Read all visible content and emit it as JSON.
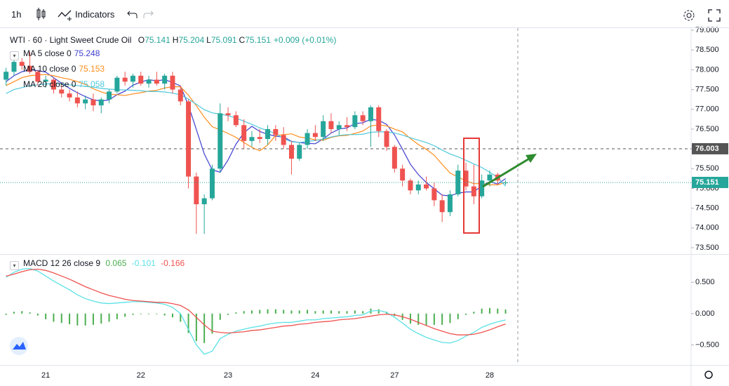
{
  "toolbar": {
    "interval": "1h",
    "indicators": "Indicators"
  },
  "chart_data": [
    {
      "type": "candlestick",
      "title": "WTI · 60 · Light Sweet Crude Oil",
      "ohlc_prefixes": [
        "O",
        "H",
        "L",
        "C"
      ],
      "change_label": "+0.009 (+0.01%)",
      "categories": [
        null,
        null,
        null,
        null,
        null,
        "21",
        null,
        null,
        null,
        null,
        null,
        null,
        null,
        null,
        null,
        null,
        null,
        "22",
        null,
        null,
        null,
        null,
        null,
        null,
        null,
        null,
        null,
        null,
        "23",
        null,
        null,
        null,
        null,
        null,
        null,
        null,
        null,
        null,
        null,
        "24",
        null,
        null,
        null,
        null,
        null,
        null,
        null,
        null,
        null,
        "27",
        null,
        null,
        null,
        null,
        null,
        null,
        null,
        null,
        null,
        null,
        null,
        "28",
        null,
        null
      ],
      "candles": [
        [
          77.75,
          78.05,
          77.6,
          77.95
        ],
        [
          77.95,
          78.25,
          77.85,
          78.2
        ],
        [
          78.2,
          78.3,
          78.0,
          78.1
        ],
        [
          78.1,
          78.45,
          77.9,
          77.95
        ],
        [
          77.95,
          78.0,
          77.6,
          77.7
        ],
        [
          77.7,
          77.85,
          77.55,
          77.75
        ],
        [
          77.75,
          77.8,
          77.4,
          77.5
        ],
        [
          77.5,
          77.65,
          77.3,
          77.4
        ],
        [
          77.4,
          77.5,
          77.2,
          77.3
        ],
        [
          77.3,
          77.45,
          77.05,
          77.15
        ],
        [
          77.15,
          77.35,
          77.0,
          77.25
        ],
        [
          77.25,
          77.4,
          76.95,
          77.1
        ],
        [
          77.1,
          77.3,
          76.9,
          77.25
        ],
        [
          77.25,
          77.5,
          77.15,
          77.45
        ],
        [
          77.45,
          77.85,
          77.4,
          77.8
        ],
        [
          77.8,
          77.95,
          77.6,
          77.7
        ],
        [
          77.7,
          77.9,
          77.55,
          77.85
        ],
        [
          77.85,
          77.95,
          77.6,
          77.65
        ],
        [
          77.65,
          77.85,
          77.55,
          77.75
        ],
        [
          77.75,
          77.95,
          77.6,
          77.65
        ],
        [
          77.65,
          77.9,
          77.5,
          77.85
        ],
        [
          77.85,
          77.95,
          77.4,
          77.5
        ],
        [
          77.5,
          77.6,
          77.1,
          77.2
        ],
        [
          77.2,
          77.25,
          75.0,
          75.3
        ],
        [
          75.3,
          75.4,
          73.85,
          74.6
        ],
        [
          74.6,
          74.85,
          73.85,
          74.75
        ],
        [
          74.75,
          75.6,
          74.7,
          75.5
        ],
        [
          75.5,
          77.15,
          75.4,
          76.9
        ],
        [
          76.9,
          77.05,
          76.7,
          76.85
        ],
        [
          76.85,
          76.95,
          76.55,
          76.6
        ],
        [
          76.6,
          76.75,
          76.0,
          76.2
        ],
        [
          76.2,
          76.45,
          76.05,
          76.3
        ],
        [
          76.3,
          76.5,
          76.15,
          76.25
        ],
        [
          76.25,
          76.6,
          76.1,
          76.5
        ],
        [
          76.5,
          76.6,
          76.2,
          76.35
        ],
        [
          76.35,
          76.55,
          76.0,
          76.1
        ],
        [
          76.1,
          76.2,
          75.35,
          75.75
        ],
        [
          75.75,
          76.15,
          75.7,
          76.1
        ],
        [
          76.1,
          76.5,
          76.0,
          76.4
        ],
        [
          76.4,
          76.6,
          76.2,
          76.3
        ],
        [
          76.3,
          76.85,
          76.2,
          76.7
        ],
        [
          76.7,
          76.9,
          76.4,
          76.5
        ],
        [
          76.5,
          76.7,
          76.35,
          76.6
        ],
        [
          76.6,
          76.8,
          76.45,
          76.55
        ],
        [
          76.55,
          76.95,
          76.5,
          76.85
        ],
        [
          76.85,
          76.95,
          76.6,
          76.7
        ],
        [
          76.7,
          77.1,
          76.05,
          77.05
        ],
        [
          77.05,
          77.1,
          76.3,
          76.45
        ],
        [
          76.45,
          76.5,
          75.95,
          76.05
        ],
        [
          76.05,
          76.1,
          75.4,
          75.5
        ],
        [
          75.5,
          75.6,
          75.05,
          75.2
        ],
        [
          75.2,
          75.25,
          74.85,
          74.95
        ],
        [
          74.95,
          75.2,
          74.85,
          75.1
        ],
        [
          75.1,
          75.3,
          74.95,
          75.0
        ],
        [
          75.0,
          75.15,
          74.55,
          74.7
        ],
        [
          74.7,
          74.85,
          74.15,
          74.4
        ],
        [
          74.4,
          74.95,
          74.3,
          74.85
        ],
        [
          74.85,
          75.6,
          74.8,
          75.45
        ],
        [
          75.45,
          75.65,
          74.95,
          75.05
        ],
        [
          75.05,
          75.6,
          74.6,
          74.8
        ],
        [
          74.8,
          75.35,
          74.75,
          75.2
        ],
        [
          75.2,
          75.45,
          75.05,
          75.35
        ],
        [
          75.35,
          75.4,
          75.1,
          75.2
        ],
        [
          75.141,
          75.204,
          75.091,
          75.151
        ]
      ],
      "up_color": "#26a69a",
      "down_color": "#ef5350",
      "series": [
        {
          "name": "MA 5 close 0",
          "color": "#3f3fd0",
          "values": [
            77.7,
            77.85,
            77.95,
            78.0,
            77.98,
            77.94,
            77.8,
            77.66,
            77.53,
            77.42,
            77.32,
            77.24,
            77.21,
            77.24,
            77.37,
            77.46,
            77.61,
            77.69,
            77.75,
            77.72,
            77.75,
            77.68,
            77.59,
            77.1,
            76.49,
            75.87,
            75.47,
            75.41,
            75.72,
            76.12,
            76.41,
            76.57,
            76.44,
            76.37,
            76.32,
            76.3,
            76.19,
            76.16,
            76.14,
            76.13,
            76.25,
            76.4,
            76.5,
            76.53,
            76.64,
            76.66,
            76.75,
            76.72,
            76.62,
            76.35,
            75.99,
            75.61,
            75.35,
            75.15,
            74.99,
            74.83,
            74.81,
            74.88,
            74.91,
            74.91,
            75.07,
            75.17,
            75.11,
            75.248
          ]
        },
        {
          "name": "MA 10 close 0",
          "color": "#ff8c1a",
          "values": [
            77.6,
            77.7,
            77.8,
            77.85,
            77.87,
            77.88,
            77.85,
            77.8,
            77.76,
            77.7,
            77.63,
            77.52,
            77.44,
            77.38,
            77.37,
            77.35,
            77.39,
            77.42,
            77.46,
            77.48,
            77.54,
            77.57,
            77.57,
            77.36,
            77.09,
            76.8,
            76.56,
            76.48,
            76.39,
            76.29,
            76.16,
            76.04,
            75.95,
            76.1,
            76.34,
            76.36,
            76.38,
            76.3,
            76.27,
            76.23,
            76.22,
            76.29,
            76.33,
            76.34,
            76.39,
            76.45,
            76.58,
            76.61,
            76.58,
            76.5,
            76.43,
            76.26,
            76.11,
            75.99,
            75.84,
            75.61,
            75.39,
            75.29,
            75.19,
            75.12,
            75.12,
            75.09,
            75.09,
            75.153
          ]
        },
        {
          "name": "MA 20 close 0",
          "color": "#4fc8dc",
          "values": [
            77.4,
            77.5,
            77.55,
            77.6,
            77.62,
            77.64,
            77.65,
            77.64,
            77.62,
            77.6,
            77.58,
            77.56,
            77.53,
            77.51,
            77.5,
            77.49,
            77.48,
            77.47,
            77.45,
            77.45,
            77.44,
            77.41,
            77.37,
            77.26,
            77.13,
            76.99,
            76.91,
            76.88,
            76.84,
            76.78,
            76.7,
            76.62,
            76.53,
            76.46,
            76.39,
            76.26,
            76.18,
            76.16,
            76.19,
            76.21,
            76.25,
            76.3,
            76.34,
            76.36,
            76.36,
            76.37,
            76.42,
            76.43,
            76.43,
            76.4,
            76.35,
            76.28,
            76.22,
            76.16,
            76.08,
            75.97,
            75.87,
            75.8,
            75.71,
            75.62,
            75.53,
            75.41,
            75.28,
            75.058
          ]
        }
      ],
      "ylim": [
        73.34,
        79.09
      ],
      "yticks": [
        {
          "value": 73.5,
          "label": "73.500"
        },
        {
          "value": 74,
          "label": "74.000"
        },
        {
          "value": 74.5,
          "label": "74.500"
        },
        {
          "value": 75,
          "label": "75.000"
        },
        {
          "value": 75.5,
          "label": "75.500"
        },
        {
          "value": 76,
          "label": "76.000"
        },
        {
          "value": 76.5,
          "label": "76.500"
        },
        {
          "value": 77,
          "label": "77.000"
        },
        {
          "value": 77.5,
          "label": "77.500"
        },
        {
          "value": 78,
          "label": "78.000"
        },
        {
          "value": 78.5,
          "label": "78.500"
        },
        {
          "value": 79,
          "label": "79.000"
        }
      ],
      "reference_line": {
        "value": 76.003,
        "color": "#555555"
      }
    },
    {
      "type": "macd",
      "title": "MACD 12 26 close 9",
      "histogram": {
        "color": "#4caf50",
        "values": [
          -0.02,
          0.03,
          0.04,
          0.02,
          -0.03,
          -0.09,
          -0.13,
          -0.15,
          -0.17,
          -0.19,
          -0.19,
          -0.18,
          -0.16,
          -0.13,
          -0.09,
          -0.05,
          -0.02,
          -0.01,
          -0.01,
          -0.01,
          -0.03,
          -0.06,
          -0.13,
          -0.31,
          -0.44,
          -0.47,
          -0.32,
          -0.1,
          -0.02,
          0.02,
          0.04,
          0.05,
          0.06,
          0.07,
          0.07,
          0.06,
          0.05,
          0.05,
          0.06,
          0.04,
          0.05,
          0.05,
          0.04,
          0.04,
          0.05,
          0.04,
          0.08,
          0.07,
          0.03,
          -0.04,
          -0.1,
          -0.16,
          -0.18,
          -0.19,
          -0.18,
          -0.18,
          -0.15,
          -0.09,
          -0.02,
          0.03,
          0.08,
          0.09,
          0.08,
          0.065
        ]
      },
      "macd": {
        "color": "#5ce1e6",
        "values": [
          0.58,
          0.66,
          0.71,
          0.72,
          0.68,
          0.6,
          0.52,
          0.45,
          0.38,
          0.3,
          0.24,
          0.2,
          0.17,
          0.16,
          0.17,
          0.18,
          0.19,
          0.19,
          0.18,
          0.17,
          0.15,
          0.1,
          0.0,
          -0.25,
          -0.5,
          -0.65,
          -0.6,
          -0.4,
          -0.33,
          -0.28,
          -0.25,
          -0.22,
          -0.2,
          -0.17,
          -0.15,
          -0.14,
          -0.14,
          -0.12,
          -0.1,
          -0.1,
          -0.08,
          -0.07,
          -0.06,
          -0.05,
          -0.03,
          -0.02,
          0.04,
          0.05,
          0.02,
          -0.06,
          -0.15,
          -0.25,
          -0.32,
          -0.38,
          -0.42,
          -0.46,
          -0.47,
          -0.43,
          -0.36,
          -0.3,
          -0.22,
          -0.17,
          -0.13,
          -0.101
        ]
      },
      "signal": {
        "color": "#ef5350",
        "values": [
          0.6,
          0.63,
          0.67,
          0.7,
          0.71,
          0.69,
          0.65,
          0.6,
          0.55,
          0.49,
          0.43,
          0.38,
          0.33,
          0.29,
          0.26,
          0.23,
          0.21,
          0.2,
          0.19,
          0.18,
          0.18,
          0.16,
          0.13,
          0.06,
          -0.06,
          -0.18,
          -0.28,
          -0.3,
          -0.31,
          -0.3,
          -0.29,
          -0.27,
          -0.26,
          -0.24,
          -0.22,
          -0.2,
          -0.19,
          -0.17,
          -0.16,
          -0.14,
          -0.13,
          -0.12,
          -0.1,
          -0.09,
          -0.08,
          -0.06,
          -0.04,
          -0.02,
          -0.01,
          -0.02,
          -0.05,
          -0.09,
          -0.14,
          -0.19,
          -0.24,
          -0.28,
          -0.32,
          -0.34,
          -0.34,
          -0.33,
          -0.3,
          -0.26,
          -0.21,
          -0.166
        ]
      },
      "ylim": [
        -0.82,
        0.94
      ],
      "yticks": [
        {
          "value": -0.5,
          "label": "−0.500"
        },
        {
          "value": 0,
          "label": "0.000"
        },
        {
          "value": 0.5,
          "label": "0.500"
        }
      ]
    }
  ]
}
